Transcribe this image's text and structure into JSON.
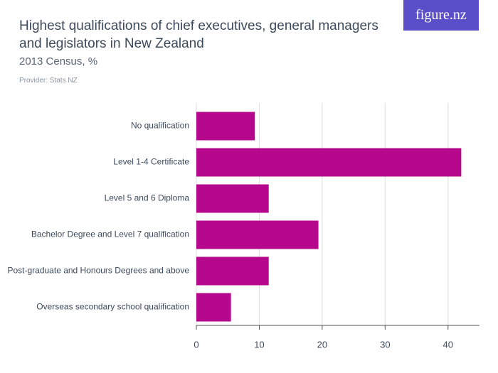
{
  "chart_data": {
    "type": "bar",
    "orientation": "horizontal",
    "title": "Highest qualifications of chief executives, general managers and legislators in New Zealand",
    "subtitle": "2013 Census, %",
    "provider": "Provider: Stats NZ",
    "logo": "figure.nz",
    "categories": [
      "No qualification",
      "Level 1-4 Certificate",
      "Level 5 and 6 Diploma",
      "Bachelor Degree and Level 7 qualification",
      "Post-graduate and Honours Degrees and above",
      "Overseas secondary school qualification"
    ],
    "values": [
      9.3,
      42.1,
      11.5,
      19.4,
      11.5,
      5.5
    ],
    "color": "#b5088c",
    "xlim": [
      0,
      45
    ],
    "xticks": [
      0,
      10,
      20,
      30,
      40
    ],
    "grid": true
  }
}
